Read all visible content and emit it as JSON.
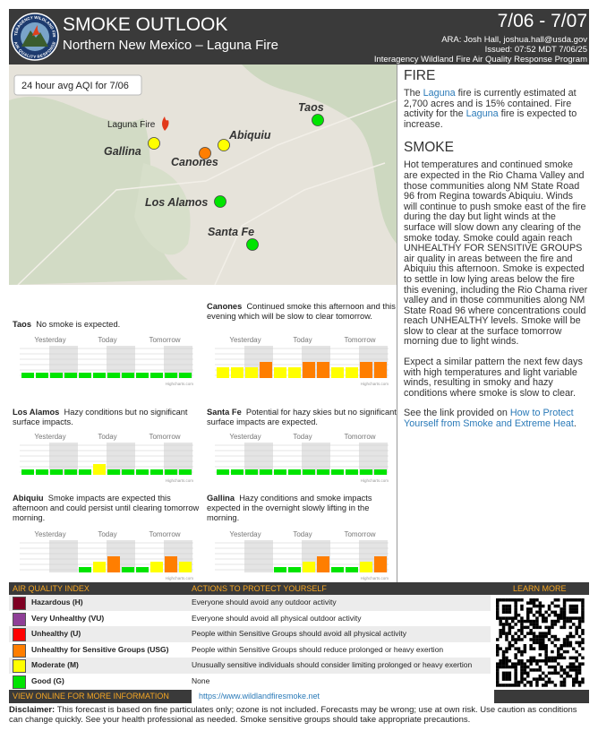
{
  "header": {
    "title": "SMOKE OUTLOOK",
    "subtitle": "Northern New Mexico – Laguna Fire",
    "dates": "7/06 - 7/07",
    "author": "ARA: Josh Hall, joshua.hall@usda.gov",
    "issued": "Issued: 07:52 MDT 7/06/25",
    "program": "Interagency Wildland Fire Air Quality Response Program",
    "logo_top": "INTERAGENCY WILDLAND FIRE",
    "logo_bottom": "AIR QUALITY RESPONSE"
  },
  "map": {
    "label": "24 hour avg AQI for 7/06",
    "fire_label": "Laguna Fire",
    "places": [
      {
        "name": "Taos",
        "color": "#00e400"
      },
      {
        "name": "Abiquiu",
        "color": "#ffff00"
      },
      {
        "name": "Gallina",
        "color": "#ffff00"
      },
      {
        "name": "Canones",
        "color": "#ff7e00"
      },
      {
        "name": "Los Alamos",
        "color": "#00e400"
      },
      {
        "name": "Santa Fe",
        "color": "#00e400"
      }
    ]
  },
  "fire": {
    "heading": "FIRE",
    "paragraphs": [
      [
        {
          "text": "The "
        },
        {
          "text": "Laguna",
          "link": true
        },
        {
          "text": " fire is currently estimated at 2,700 acres and is 15% contained. Fire activity for the "
        },
        {
          "text": "Laguna",
          "link": true
        },
        {
          "text": " fire is expected to increase."
        }
      ]
    ]
  },
  "smoke": {
    "heading": "SMOKE",
    "paragraphs": [
      [
        {
          "text": "Hot temperatures and continued smoke are expected in the Rio Chama Valley and those communities along NM State Road 96 from Regina towards Abiquiu. Winds will continue to push smoke east of the fire during the day but light winds at the surface will slow down any clearing of the smoke today. Smoke could again reach UNHEALTHY FOR SENSITIVE GROUPS air quality in areas between the fire and Abiquiu this afternoon. Smoke is expected to settle in low lying areas below the fire this evening, including the Rio Chama river valley and in those communities along NM State Road 96 where concentrations could reach UNHEALTHY levels. Smoke will be slow to clear at the surface tomorrow morning due to light winds."
        }
      ],
      [
        {
          "text": "Expect a similar pattern the next few days with high temperatures and light variable winds, resulting in smoky and hazy conditions where smoke is slow to clear."
        }
      ],
      [
        {
          "text": "See the link provided on "
        },
        {
          "text": "How to Protect Yourself from Smoke and Extreme Heat",
          "link": true
        },
        {
          "text": "."
        }
      ]
    ]
  },
  "charts": {
    "day_labels": [
      "Yesterday",
      "Today",
      "Tomorrow"
    ],
    "credit": "Highcharts.com",
    "ylim": [
      0,
      6
    ],
    "items": [
      {
        "site": "Taos",
        "text": "No smoke is expected.",
        "values": [
          1,
          1,
          1,
          1,
          1,
          1,
          1,
          1,
          1,
          1,
          1,
          1
        ]
      },
      {
        "site": "Canones",
        "text": "Continued smoke this afternoon and this evening which will be slow to clear tomorrow.",
        "values": [
          2,
          2,
          2,
          3,
          2,
          2,
          3,
          3,
          2,
          2,
          3,
          3
        ]
      },
      {
        "site": "Los Alamos",
        "text": "Hazy conditions but no significant surface impacts.",
        "values": [
          1,
          1,
          1,
          1,
          1,
          2,
          1,
          1,
          1,
          1,
          1,
          1
        ]
      },
      {
        "site": "Santa Fe",
        "text": "Potential for hazy skies but no significant surface impacts are expected.",
        "values": [
          1,
          1,
          1,
          1,
          1,
          1,
          1,
          1,
          1,
          1,
          1,
          1
        ]
      },
      {
        "site": "Abiquiu",
        "text": "Smoke impacts are expected this afternoon and could persist until clearing tomorrow morning.",
        "values": [
          null,
          null,
          null,
          null,
          1,
          2,
          3,
          1,
          1,
          2,
          3,
          2
        ]
      },
      {
        "site": "Gallina",
        "text": "Hazy conditions and smoke impacts expected in the overnight slowly lifting in the morning.",
        "values": [
          null,
          null,
          null,
          null,
          1,
          1,
          2,
          3,
          1,
          1,
          2,
          3
        ]
      }
    ]
  },
  "aqi": {
    "col_index": "AIR QUALITY INDEX",
    "col_actions": "ACTIONS TO PROTECT YOURSELF",
    "col_learn": "LEARN MORE",
    "rows": [
      {
        "level": "Hazardous (H)",
        "color": "#7e0023",
        "action": "Everyone should avoid any outdoor activity"
      },
      {
        "level": "Very Unhealthy (VU)",
        "color": "#8f3f97",
        "action": "Everyone should avoid all physical outdoor activity"
      },
      {
        "level": "Unhealthy (U)",
        "color": "#ff0000",
        "action": "People within Sensitive Groups should avoid all physical activity"
      },
      {
        "level": "Unhealthy for Sensitive Groups (USG)",
        "color": "#ff7e00",
        "action": "People within Sensitive Groups should reduce prolonged or heavy exertion"
      },
      {
        "level": "Moderate (M)",
        "color": "#ffff00",
        "action": "Unusually sensitive individuals should consider limiting prolonged or heavy exertion"
      },
      {
        "level": "Good (G)",
        "color": "#00e400",
        "action": "None"
      }
    ],
    "view_online": "VIEW ONLINE FOR MORE INFORMATION",
    "url": "https://www.wildlandfiresmoke.net"
  },
  "disclaimer": {
    "label": "Disclaimer:",
    "text": " This forecast is based on fine particulates only; ozone is not included. Forecasts may be wrong; use at own risk. Use caution as conditions can change quickly. See your health professional as needed. Smoke sensitive groups should take appropriate precautions."
  }
}
